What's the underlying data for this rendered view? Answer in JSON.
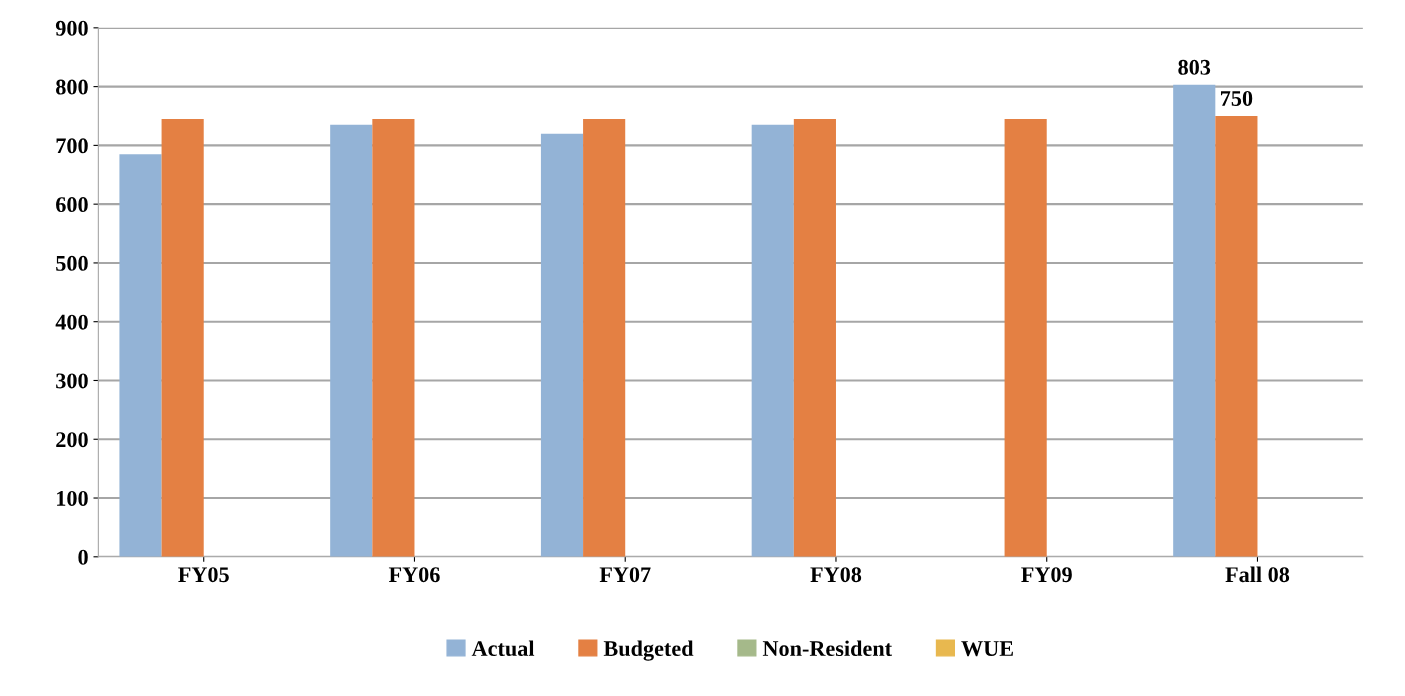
{
  "chart_data": {
    "type": "bar",
    "categories": [
      "FY05",
      "FY06",
      "FY07",
      "FY08",
      "FY09",
      "Fall 08"
    ],
    "series": [
      {
        "name": "Actual",
        "color": "#93b3d6",
        "values": [
          685,
          735,
          720,
          735,
          null,
          803
        ],
        "value_labels": [
          null,
          null,
          null,
          null,
          null,
          "803"
        ]
      },
      {
        "name": "Budgeted",
        "color": "#e48043",
        "values": [
          745,
          745,
          745,
          745,
          745,
          750
        ],
        "value_labels": [
          null,
          null,
          null,
          null,
          null,
          "750"
        ]
      },
      {
        "name": "Non-Resident",
        "color": "#a5b98a",
        "values": [
          null,
          null,
          null,
          null,
          0,
          0
        ]
      },
      {
        "name": "WUE",
        "color": "#e8b84f",
        "values": [
          null,
          null,
          null,
          null,
          0,
          0
        ]
      }
    ],
    "ylim": [
      0,
      900
    ],
    "yticks": [
      0,
      100,
      200,
      300,
      400,
      500,
      600,
      700,
      800,
      900
    ],
    "grid": "y",
    "legend": "bottom"
  }
}
